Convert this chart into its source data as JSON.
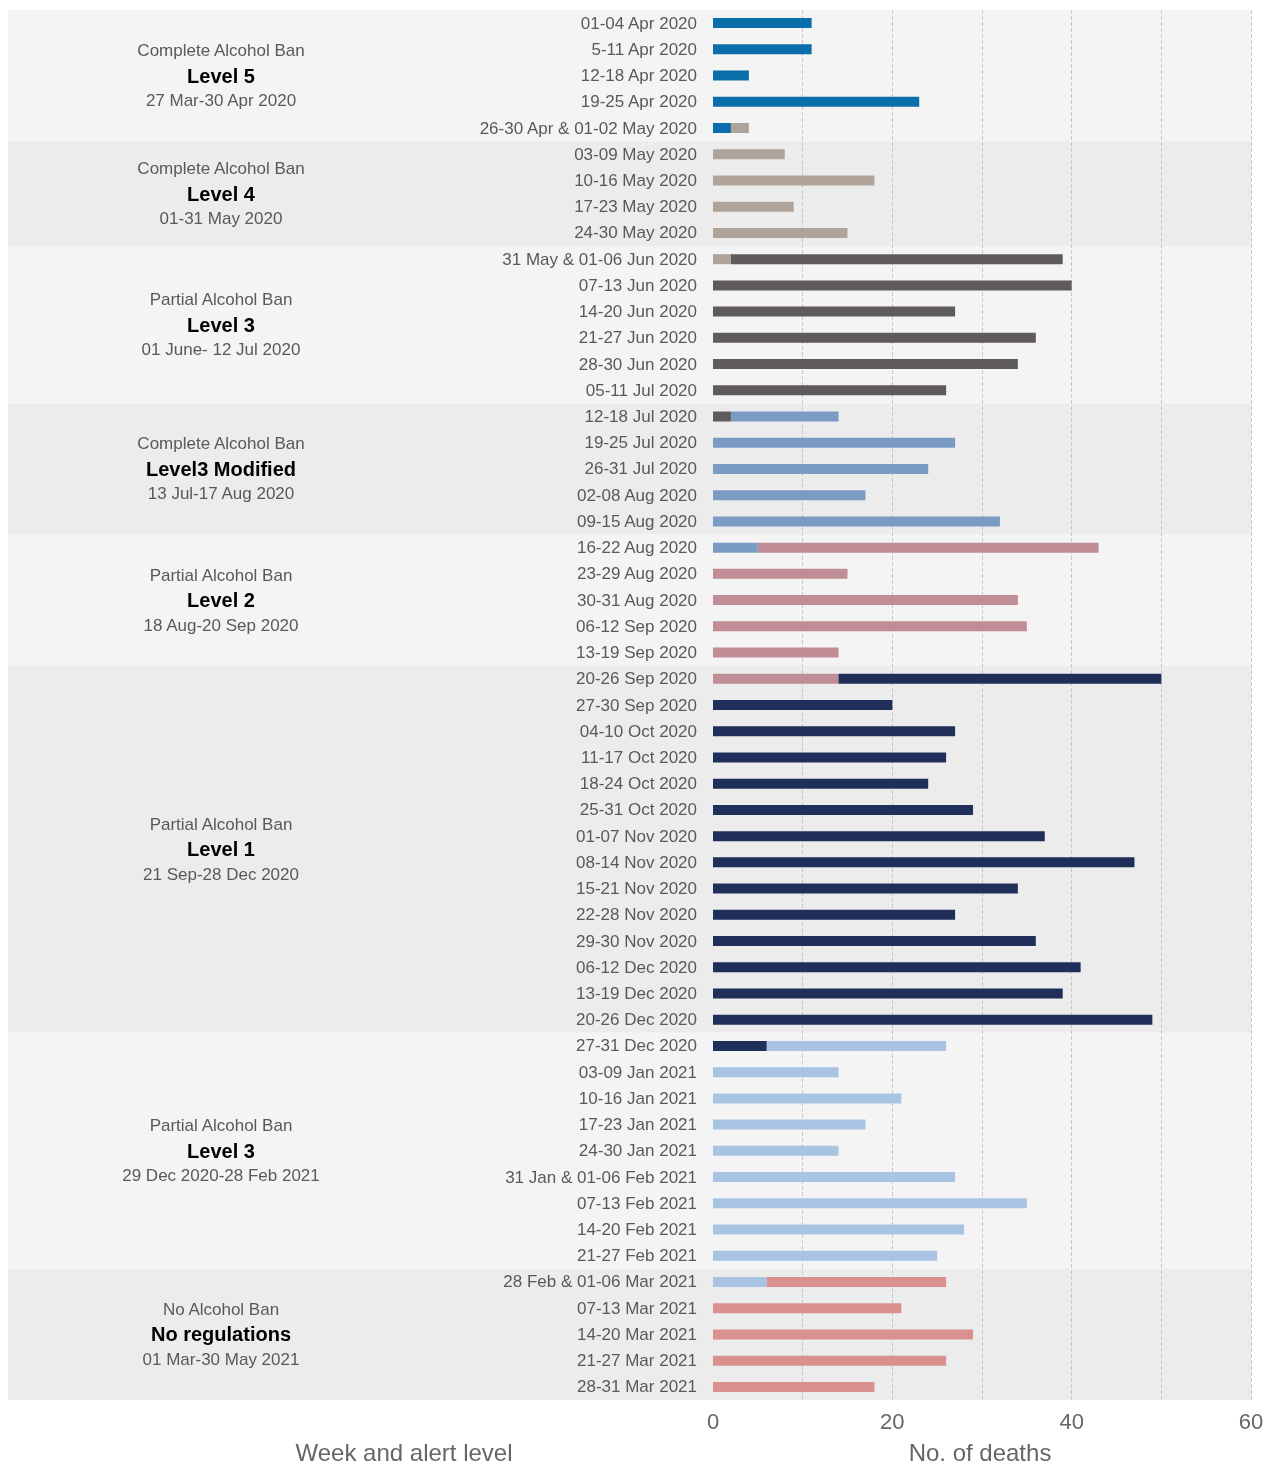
{
  "chart_data": {
    "type": "bar",
    "orientation": "horizontal",
    "stacked": true,
    "xlabel": "No. of deaths",
    "ylabel": "Week and alert level",
    "categories": [
      "01-04 Apr 2020",
      "5-11 Apr 2020",
      "12-18 Apr 2020",
      "19-25 Apr 2020",
      "26-30 Apr & 01-02 May 2020",
      "03-09 May 2020",
      "10-16 May 2020",
      "17-23 May 2020",
      "24-30 May 2020",
      "31 May & 01-06 Jun 2020",
      "07-13 Jun 2020",
      "14-20 Jun 2020",
      "21-27 Jun 2020",
      "28-30 Jun 2020",
      "05-11 Jul 2020",
      "12-18 Jul 2020",
      "19-25 Jul 2020",
      "26-31 Jul 2020",
      "02-08 Aug 2020",
      "09-15 Aug 2020",
      "16-22 Aug 2020",
      "23-29 Aug 2020",
      "30-31 Aug 2020",
      "06-12 Sep 2020",
      "13-19 Sep 2020",
      "20-26 Sep 2020",
      "27-30 Sep 2020",
      "04-10 Oct 2020",
      "11-17 Oct 2020",
      "18-24 Oct 2020",
      "25-31 Oct 2020",
      "01-07 Nov 2020",
      "08-14 Nov 2020",
      "15-21 Nov 2020",
      "22-28 Nov 2020",
      "29-30 Nov 2020",
      "06-12 Dec 2020",
      "13-19 Dec 2020",
      "20-26 Dec 2020",
      "27-31 Dec 2020",
      "03-09 Jan 2021",
      "10-16 Jan 2021",
      "17-23 Jan 2021",
      "24-30 Jan 2021",
      "31 Jan & 01-06 Feb 2021",
      "07-13 Feb 2021",
      "14-20 Feb 2021",
      "21-27 Feb 2021",
      "28 Feb & 01-06 Mar 2021",
      "07-13 Mar 2021",
      "14-20 Mar 2021",
      "21-27 Mar 2021",
      "28-31 Mar 2021"
    ],
    "series": [
      {
        "color": "#0a6eaa",
        "values": [
          11,
          11,
          4,
          23,
          2,
          null,
          null,
          null,
          null,
          null,
          null,
          null,
          null,
          null,
          null,
          null,
          null,
          null,
          null,
          null,
          null,
          null,
          null,
          null,
          null,
          null,
          null,
          null,
          null,
          null,
          null,
          null,
          null,
          null,
          null,
          null,
          null,
          null,
          null,
          null,
          null,
          null,
          null,
          null,
          null,
          null,
          null,
          null,
          null,
          null,
          null,
          null,
          null
        ]
      },
      {
        "color": "#b0a49a",
        "values": [
          null,
          null,
          null,
          null,
          2,
          8,
          18,
          9,
          15,
          2,
          null,
          null,
          null,
          null,
          null,
          null,
          null,
          null,
          null,
          null,
          null,
          null,
          null,
          null,
          null,
          null,
          null,
          null,
          null,
          null,
          null,
          null,
          null,
          null,
          null,
          null,
          null,
          null,
          null,
          null,
          null,
          null,
          null,
          null,
          null,
          null,
          null,
          null,
          null,
          null,
          null,
          null,
          null
        ]
      },
      {
        "color": "#5f5a5b",
        "values": [
          null,
          null,
          null,
          null,
          null,
          null,
          null,
          null,
          null,
          37,
          40,
          27,
          36,
          34,
          26,
          2,
          null,
          null,
          null,
          null,
          null,
          null,
          null,
          null,
          null,
          null,
          null,
          null,
          null,
          null,
          null,
          null,
          null,
          null,
          null,
          null,
          null,
          null,
          null,
          null,
          null,
          null,
          null,
          null,
          null,
          null,
          null,
          null,
          null,
          null,
          null,
          null,
          null
        ]
      },
      {
        "color": "#7a9cc4",
        "values": [
          null,
          null,
          null,
          null,
          null,
          null,
          null,
          null,
          null,
          null,
          null,
          null,
          null,
          null,
          null,
          12,
          27,
          24,
          17,
          32,
          5,
          null,
          null,
          null,
          null,
          null,
          null,
          null,
          null,
          null,
          null,
          null,
          null,
          null,
          null,
          null,
          null,
          null,
          null,
          null,
          null,
          null,
          null,
          null,
          null,
          null,
          null,
          null,
          null,
          null,
          null,
          null,
          null
        ]
      },
      {
        "color": "#c08c96",
        "values": [
          null,
          null,
          null,
          null,
          null,
          null,
          null,
          null,
          null,
          null,
          null,
          null,
          null,
          null,
          null,
          null,
          null,
          null,
          null,
          null,
          38,
          15,
          34,
          35,
          14,
          14,
          null,
          null,
          null,
          null,
          null,
          null,
          null,
          null,
          null,
          null,
          null,
          null,
          null,
          null,
          null,
          null,
          null,
          null,
          null,
          null,
          null,
          null,
          null,
          null,
          null,
          null,
          null
        ]
      },
      {
        "color": "#1f2f5a",
        "values": [
          null,
          null,
          null,
          null,
          null,
          null,
          null,
          null,
          null,
          null,
          null,
          null,
          null,
          null,
          null,
          null,
          null,
          null,
          null,
          null,
          null,
          null,
          null,
          null,
          null,
          36,
          20,
          27,
          26,
          24,
          29,
          37,
          47,
          34,
          27,
          36,
          41,
          39,
          49,
          6,
          null,
          null,
          null,
          null,
          null,
          null,
          null,
          null,
          null,
          null,
          null,
          null,
          null
        ]
      },
      {
        "color": "#a8c4e2",
        "values": [
          null,
          null,
          null,
          null,
          null,
          null,
          null,
          null,
          null,
          null,
          null,
          null,
          null,
          null,
          null,
          null,
          null,
          null,
          null,
          null,
          null,
          null,
          null,
          null,
          null,
          null,
          null,
          null,
          null,
          null,
          null,
          null,
          null,
          null,
          null,
          null,
          null,
          null,
          null,
          20,
          14,
          21,
          17,
          14,
          27,
          35,
          28,
          25,
          6,
          null,
          null,
          null,
          null
        ]
      },
      {
        "color": "#d9908f",
        "values": [
          null,
          null,
          null,
          null,
          null,
          null,
          null,
          null,
          null,
          null,
          null,
          null,
          null,
          null,
          null,
          null,
          null,
          null,
          null,
          null,
          null,
          null,
          null,
          null,
          null,
          null,
          null,
          null,
          null,
          null,
          null,
          null,
          null,
          null,
          null,
          null,
          null,
          null,
          null,
          null,
          null,
          null,
          null,
          null,
          null,
          null,
          null,
          null,
          20,
          21,
          29,
          26,
          18
        ]
      }
    ],
    "bands": [
      {
        "axis": "y",
        "from": "01-04 Apr 2020",
        "to": "26-30 Apr & 01-02 May 2020",
        "color": "#f4f4f4",
        "label": "Complete Alcohol Ban\nLevel 5\n27 Mar-30 Apr 2020"
      },
      {
        "axis": "y",
        "from": "03-09 May 2020",
        "to": "24-30 May 2020",
        "color": "#ececec",
        "label": "Complete Alcohol Ban\nLevel 4\n01-31 May 2020"
      },
      {
        "axis": "y",
        "from": "31 May & 01-06 Jun 2020",
        "to": "05-11 Jul 2020",
        "color": "#f4f4f4",
        "label": "Partial Alcohol Ban\nLevel 3\n01 June- 12 Jul 2020"
      },
      {
        "axis": "y",
        "from": "12-18 Jul 2020",
        "to": "09-15 Aug 2020",
        "color": "#ececec",
        "label": "Complete Alcohol Ban\nLevel3 Modified\n13 Jul-17 Aug 2020"
      },
      {
        "axis": "y",
        "from": "16-22 Aug 2020",
        "to": "13-19 Sep 2020",
        "color": "#f4f4f4",
        "label": "Partial Alcohol Ban\nLevel 2\n18 Aug-20 Sep 2020"
      },
      {
        "axis": "y",
        "from": "20-26 Sep 2020",
        "to": "20-26 Dec 2020",
        "color": "#ececec",
        "label": "Partial Alcohol Ban\nLevel 1\n21 Sep-28 Dec 2020"
      },
      {
        "axis": "y",
        "from": "27-31 Dec 2020",
        "to": "21-27 Feb 2021",
        "color": "#f4f4f4",
        "label": "Partial Alcohol Ban\nLevel 3\n29 Dec 2020-28 Feb 2021"
      },
      {
        "axis": "y",
        "from": "28 Feb & 01-06 Mar 2021",
        "to": "28-31 Mar 2021",
        "color": "#ececec",
        "label": "No Alcohol Ban\nNo regulations\n01 Mar-30 May 2021"
      }
    ],
    "xlim": [
      0,
      60
    ],
    "xticks": [
      0,
      20,
      40,
      60
    ],
    "grid": "x"
  }
}
